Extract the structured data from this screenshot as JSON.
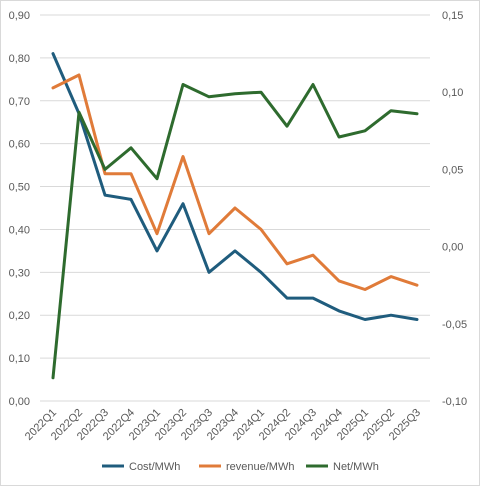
{
  "chart_data": {
    "type": "line",
    "categories": [
      "2022Q1",
      "2022Q2",
      "2022Q3",
      "2022Q4",
      "2023Q1",
      "2023Q2",
      "2023Q3",
      "2023Q4",
      "2024Q1",
      "2024Q2",
      "2024Q3",
      "2024Q4",
      "2025Q1",
      "2025Q2",
      "2025Q3"
    ],
    "left_axis": {
      "ylim": [
        0,
        0.9
      ],
      "ticks": [
        "0,00",
        "0,10",
        "0,20",
        "0,30",
        "0,40",
        "0,50",
        "0,60",
        "0,70",
        "0,80",
        "0,90"
      ]
    },
    "right_axis": {
      "ylim": [
        -0.1,
        0.15
      ],
      "ticks": [
        "-0,10",
        "-0,05",
        "0,00",
        "0,05",
        "0,10",
        "0,15"
      ]
    },
    "series": [
      {
        "name": "Cost/MWh",
        "axis": "left",
        "color": "#1f5c7d",
        "values": [
          0.81,
          0.67,
          0.48,
          0.47,
          0.35,
          0.46,
          0.3,
          0.35,
          0.3,
          0.24,
          0.24,
          0.21,
          0.19,
          0.2,
          0.19
        ]
      },
      {
        "name": "revenue/MWh",
        "axis": "left",
        "color": "#e07b39",
        "values": [
          0.73,
          0.76,
          0.53,
          0.53,
          0.39,
          0.57,
          0.39,
          0.45,
          0.4,
          0.32,
          0.34,
          0.28,
          0.26,
          0.29,
          0.27
        ]
      },
      {
        "name": "Net/MWh",
        "axis": "right",
        "color": "#2e6b2e",
        "values": [
          -0.085,
          0.087,
          0.05,
          0.064,
          0.044,
          0.105,
          0.097,
          0.099,
          0.1,
          0.078,
          0.105,
          0.071,
          0.075,
          0.088,
          0.086
        ]
      }
    ],
    "grid": true,
    "legend_position": "bottom"
  }
}
